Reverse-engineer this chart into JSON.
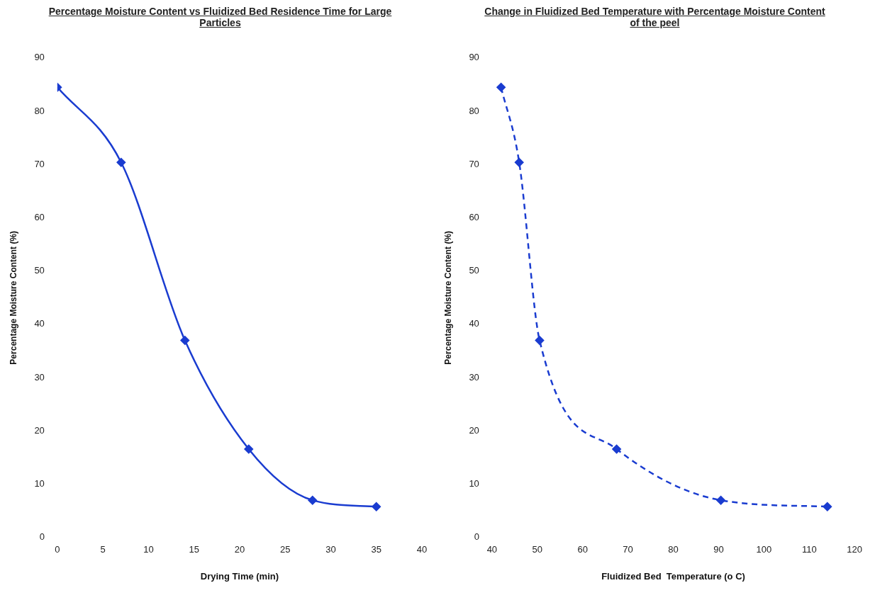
{
  "chart_data": [
    {
      "type": "line",
      "title": "Percentage Moisture Content vs Fluidized Bed Residence Time for Large Particles",
      "xlabel": "Drying Time (min)",
      "ylabel": "Percentage Moisture Content (%)",
      "x": [
        0,
        7,
        14,
        21,
        28,
        35
      ],
      "series": [
        {
          "color": "#1a3cd0",
          "values": [
            84.5,
            70.4,
            37,
            16.6,
            7,
            5.8
          ]
        }
      ],
      "xlim": [
        0,
        40
      ],
      "xticks": [
        0,
        5,
        10,
        15,
        20,
        25,
        30,
        35,
        40
      ],
      "ylim": [
        0,
        90
      ],
      "yticks": [
        0,
        10,
        20,
        30,
        40,
        50,
        60,
        70,
        80,
        90
      ],
      "marker": "diamond",
      "line_style": "solid"
    },
    {
      "type": "line",
      "title": "Change in Fluidized Bed Temperature  with  Percentage Moisture Content of the peel",
      "xlabel": "Fluidized Bed  Temperature (o C)",
      "ylabel": "Percentage Moisture Content (%)",
      "x": [
        42,
        46,
        50.5,
        67.5,
        90.5,
        114
      ],
      "series": [
        {
          "color": "#1a3cd0",
          "values": [
            84.5,
            70.4,
            37,
            16.6,
            7,
            5.8
          ]
        }
      ],
      "xlim": [
        40,
        120
      ],
      "xticks": [
        40,
        50,
        60,
        70,
        80,
        90,
        100,
        110,
        120
      ],
      "ylim": [
        0,
        90
      ],
      "yticks": [
        0,
        10,
        20,
        30,
        40,
        50,
        60,
        70,
        80,
        90
      ],
      "marker": "diamond",
      "line_style": "dashed"
    }
  ]
}
